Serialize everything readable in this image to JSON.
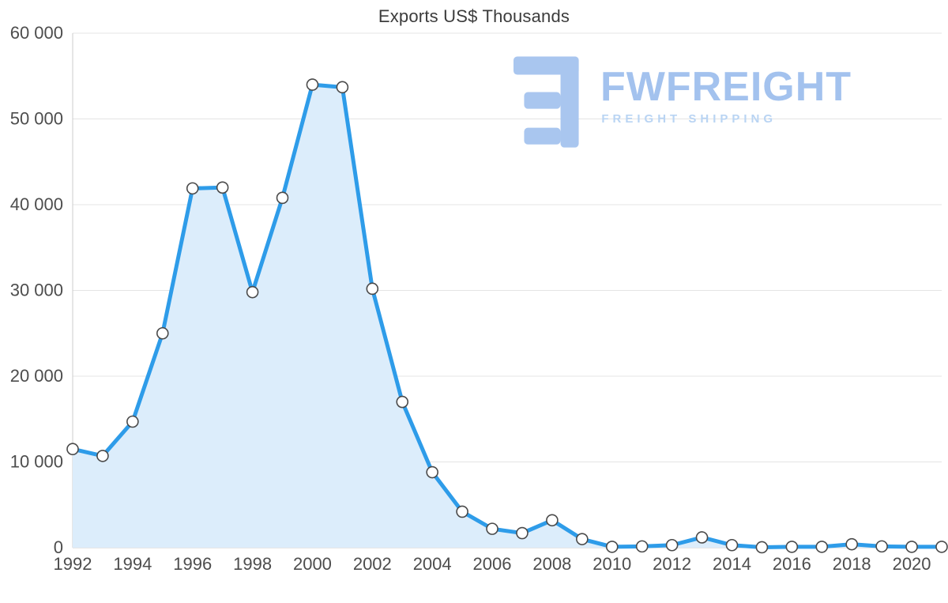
{
  "title": "Exports US$ Thousands",
  "logo": {
    "brand": "FWFREIGHT",
    "tagline": "FREIGHT SHIPPING"
  },
  "chart_data": {
    "type": "area",
    "title": "Exports US$ Thousands",
    "xlabel": "",
    "ylabel": "",
    "x": [
      1992,
      1993,
      1994,
      1995,
      1996,
      1997,
      1998,
      1999,
      2000,
      2001,
      2002,
      2003,
      2004,
      2005,
      2006,
      2007,
      2008,
      2009,
      2010,
      2011,
      2012,
      2013,
      2014,
      2015,
      2016,
      2017,
      2018,
      2019,
      2020,
      2021
    ],
    "series": [
      {
        "name": "Exports US$ Thousands",
        "values": [
          11500,
          10700,
          14700,
          25000,
          41900,
          42000,
          29800,
          40800,
          54000,
          53700,
          30200,
          17000,
          8800,
          4200,
          2200,
          1700,
          3200,
          1000,
          100,
          150,
          300,
          1200,
          300,
          50,
          100,
          100,
          400,
          150,
          100,
          100
        ]
      }
    ],
    "ylim": [
      0,
      60000
    ],
    "y_ticks": [
      0,
      10000,
      20000,
      30000,
      40000,
      50000,
      60000
    ],
    "x_tick_labels": [
      "1992",
      "1994",
      "1996",
      "1998",
      "2000",
      "2002",
      "2004",
      "2006",
      "2008",
      "2010",
      "2012",
      "2014",
      "2016",
      "2018",
      "2020"
    ],
    "grid": "horizontal",
    "legend": "none",
    "marker": "circle",
    "colors": {
      "line": "#2e9ce9",
      "area": "#dcedfb",
      "marker_fill": "#ffffff",
      "marker_stroke": "#4a4a4a",
      "grid": "#e4e4e4",
      "axis": "#cccccc",
      "tick_text": "#4d4d4d",
      "title_text": "#3c3c3c",
      "logo": "#a9c6ef",
      "logo_tagline": "#b9d4f3"
    }
  }
}
